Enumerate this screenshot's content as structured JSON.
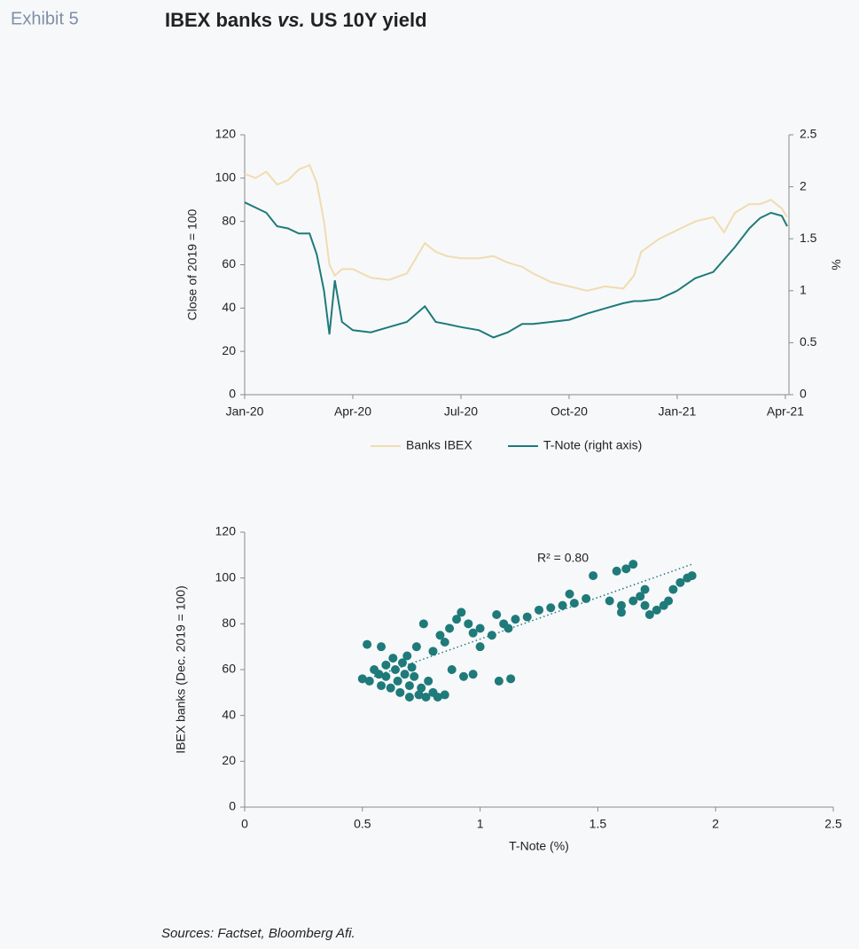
{
  "header": {
    "label": "Exhibit 5",
    "title": [
      "IBEX banks ",
      "vs.",
      " US 10Y yield"
    ],
    "source": "Sources: Factset, Bloomberg Afi."
  },
  "chart_data": [
    {
      "type": "line",
      "x": [
        0,
        0.3,
        0.6,
        0.9,
        1.2,
        1.5,
        1.8,
        2.0,
        2.2,
        2.35,
        2.5,
        2.7,
        3,
        3.5,
        4,
        4.5,
        5,
        5.3,
        5.6,
        6,
        6.5,
        6.9,
        7.3,
        7.7,
        8,
        8.5,
        9,
        9.5,
        10,
        10.5,
        10.8,
        11,
        11.5,
        12,
        12.5,
        13,
        13.3,
        13.6,
        14,
        14.3,
        14.6,
        14.9,
        15.05
      ],
      "series": [
        {
          "name": "Banks IBEX",
          "color": "#f0dcb0",
          "values": [
            102,
            100,
            103,
            97,
            99,
            104,
            106,
            98,
            80,
            60,
            55,
            58,
            58,
            54,
            53,
            56,
            70,
            66,
            64,
            63,
            63,
            64,
            61,
            59,
            56,
            52,
            50,
            48,
            50,
            49,
            55,
            66,
            72,
            76,
            80,
            82,
            75,
            84,
            88,
            88,
            90,
            86,
            82
          ]
        },
        {
          "name": "T-Note (right axis)",
          "color": "#1f7a7a",
          "axis": "y2",
          "values": [
            1.85,
            1.8,
            1.75,
            1.62,
            1.6,
            1.55,
            1.55,
            1.35,
            1.0,
            0.58,
            1.1,
            0.7,
            0.62,
            0.6,
            0.65,
            0.7,
            0.85,
            0.7,
            0.68,
            0.65,
            0.62,
            0.55,
            0.6,
            0.68,
            0.68,
            0.7,
            0.72,
            0.78,
            0.83,
            0.88,
            0.9,
            0.9,
            0.92,
            1.0,
            1.12,
            1.18,
            1.3,
            1.42,
            1.6,
            1.7,
            1.75,
            1.72,
            1.62
          ]
        }
      ],
      "xlim": [
        0,
        15.1
      ],
      "xticks": [
        {
          "value": 0,
          "label": "Jan-20"
        },
        {
          "value": 3,
          "label": "Apr-20"
        },
        {
          "value": 6,
          "label": "Jul-20"
        },
        {
          "value": 9,
          "label": "Oct-20"
        },
        {
          "value": 12,
          "label": "Jan-21"
        },
        {
          "value": 15,
          "label": "Apr-21"
        }
      ],
      "ylim": [
        0,
        120
      ],
      "yticks": [
        0,
        20,
        40,
        60,
        80,
        100,
        120
      ],
      "y2lim": [
        0,
        2.5
      ],
      "y2ticks": [
        0,
        0.5,
        1,
        1.5,
        2,
        2.5
      ],
      "ylabel": "Close of 2019 = 100",
      "y2label": "%",
      "legend": "bottom"
    },
    {
      "type": "scatter",
      "x": [
        0.5,
        0.52,
        0.53,
        0.55,
        0.57,
        0.58,
        0.6,
        0.6,
        0.62,
        0.63,
        0.64,
        0.65,
        0.66,
        0.67,
        0.68,
        0.69,
        0.7,
        0.7,
        0.71,
        0.72,
        0.73,
        0.74,
        0.75,
        0.77,
        0.8,
        0.78,
        0.58,
        0.82,
        0.85,
        0.76,
        0.8,
        0.83,
        0.85,
        0.87,
        0.9,
        0.92,
        0.95,
        0.97,
        1.0,
        0.88,
        0.93,
        0.97,
        1.0,
        1.05,
        1.07,
        1.1,
        1.12,
        1.15,
        1.2,
        1.08,
        1.13,
        1.25,
        1.3,
        1.35,
        1.4,
        1.45,
        1.38,
        1.48,
        1.55,
        1.6,
        1.62,
        1.65,
        1.58,
        1.7,
        1.7,
        1.75,
        1.8,
        1.82,
        1.85,
        1.88,
        1.9,
        1.6,
        1.65,
        1.68,
        1.72,
        1.78
      ],
      "values": [
        56,
        71,
        55,
        60,
        58,
        53,
        62,
        57,
        52,
        65,
        60,
        55,
        50,
        63,
        58,
        66,
        48,
        53,
        61,
        57,
        70,
        49,
        52,
        48,
        50,
        55,
        70,
        48,
        49,
        80,
        68,
        75,
        72,
        78,
        82,
        85,
        80,
        76,
        78,
        60,
        57,
        58,
        70,
        75,
        84,
        80,
        78,
        82,
        83,
        55,
        56,
        86,
        87,
        88,
        89,
        91,
        93,
        101,
        90,
        88,
        104,
        106,
        103,
        95,
        88,
        86,
        90,
        95,
        98,
        100,
        101,
        85,
        90,
        92,
        84,
        88
      ],
      "color": "#1f7a7a",
      "trendline": {
        "x": [
          0.55,
          1.9
        ],
        "y": [
          57,
          106
        ]
      },
      "annotation": "R² = 0.80",
      "xlim": [
        0,
        2.5
      ],
      "xticks": [
        0,
        0.5,
        1,
        1.5,
        2,
        2.5
      ],
      "ylim": [
        0,
        120
      ],
      "yticks": [
        0,
        20,
        40,
        60,
        80,
        100,
        120
      ],
      "xlabel": "T-Note (%)",
      "ylabel": "IBEX banks (Dec. 2019 = 100)"
    }
  ]
}
